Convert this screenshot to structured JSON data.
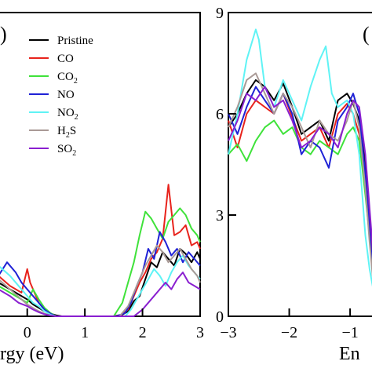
{
  "chart_data": [
    {
      "type": "line",
      "panel_label": ")",
      "xlabel": "rgy (eV)",
      "ylabel": "",
      "xlim": [
        -0.5,
        3
      ],
      "ylim": [
        0,
        9
      ],
      "x_ticks": [
        0,
        1,
        2,
        3
      ],
      "x_tick_labels": [
        "0",
        "1",
        "2",
        "3"
      ],
      "legend": {
        "position": "top-left"
      },
      "series": [
        {
          "name": "Pristine",
          "label_main": "Pristine",
          "label_sub": "",
          "color": "#000000",
          "x": [
            -0.5,
            -0.3,
            -0.1,
            0,
            0.1,
            0.2,
            0.3,
            0.4,
            0.5,
            0.6,
            1.5,
            1.65,
            1.75,
            1.85,
            1.95,
            2.05,
            2.15,
            2.25,
            2.35,
            2.45,
            2.55,
            2.65,
            2.75,
            2.85,
            2.95,
            3.0
          ],
          "y": [
            1.0,
            0.8,
            0.6,
            0.5,
            0.35,
            0.25,
            0.15,
            0.08,
            0.03,
            0,
            0,
            0.05,
            0.15,
            0.45,
            0.6,
            1.1,
            1.6,
            1.45,
            1.9,
            1.7,
            1.5,
            2.0,
            1.85,
            1.6,
            1.9,
            1.7
          ]
        },
        {
          "name": "CO",
          "label_main": "CO",
          "label_sub": "",
          "color": "#e8231c",
          "x": [
            -0.5,
            -0.3,
            -0.1,
            0,
            0.05,
            0.1,
            0.2,
            0.3,
            0.4,
            0.5,
            1.6,
            1.75,
            1.85,
            1.95,
            2.05,
            2.15,
            2.25,
            2.35,
            2.45,
            2.55,
            2.65,
            2.75,
            2.85,
            2.95,
            3.0
          ],
          "y": [
            1.2,
            0.9,
            0.7,
            1.4,
            1.0,
            0.8,
            0.4,
            0.2,
            0.08,
            0,
            0,
            0.2,
            0.6,
            1.0,
            1.3,
            1.7,
            1.9,
            2.3,
            3.9,
            2.4,
            2.5,
            2.7,
            2.1,
            2.2,
            2.0
          ]
        },
        {
          "name": "CO2",
          "label_main": "CO",
          "label_sub": "2",
          "color": "#3fe23a",
          "x": [
            -0.5,
            -0.3,
            -0.1,
            0,
            0.1,
            0.2,
            0.3,
            0.4,
            0.5,
            1.5,
            1.65,
            1.75,
            1.85,
            1.95,
            2.05,
            2.15,
            2.25,
            2.35,
            2.45,
            2.55,
            2.65,
            2.75,
            2.85,
            2.95,
            3.0
          ],
          "y": [
            0.9,
            0.7,
            0.5,
            0.4,
            0.8,
            0.5,
            0.25,
            0.1,
            0,
            0,
            0.4,
            1.0,
            1.6,
            2.4,
            3.1,
            2.9,
            2.6,
            2.3,
            2.8,
            3.0,
            3.2,
            3.0,
            2.6,
            2.4,
            2.2
          ]
        },
        {
          "name": "NO",
          "label_main": "NO",
          "label_sub": "",
          "color": "#1f22d6",
          "x": [
            -0.5,
            -0.35,
            -0.2,
            -0.1,
            0,
            0.1,
            0.2,
            0.3,
            0.4,
            0.5,
            1.55,
            1.7,
            1.8,
            1.9,
            2.0,
            2.1,
            2.2,
            2.3,
            2.4,
            2.5,
            2.6,
            2.7,
            2.8,
            2.9,
            3.0
          ],
          "y": [
            1.2,
            1.6,
            1.3,
            1.0,
            0.8,
            0.6,
            0.4,
            0.2,
            0.08,
            0,
            0,
            0.1,
            0.4,
            0.9,
            1.3,
            2.0,
            1.7,
            2.5,
            2.2,
            1.8,
            2.0,
            1.6,
            1.9,
            1.7,
            1.5
          ]
        },
        {
          "name": "NO2",
          "label_main": "NO",
          "label_sub": "2",
          "color": "#5ff3f5",
          "x": [
            -0.5,
            -0.3,
            -0.15,
            0,
            0.1,
            0.2,
            0.3,
            0.4,
            0.5,
            1.7,
            1.8,
            1.9,
            2.0,
            2.1,
            2.2,
            2.3,
            2.4,
            2.5,
            2.6,
            2.7,
            2.8,
            2.9,
            3.0
          ],
          "y": [
            1.5,
            1.2,
            0.9,
            0.6,
            0.4,
            0.3,
            0.15,
            0.05,
            0,
            0,
            0.2,
            0.5,
            0.8,
            1.1,
            1.4,
            1.2,
            0.9,
            1.3,
            1.6,
            1.8,
            1.5,
            1.3,
            1.1
          ]
        },
        {
          "name": "H2S",
          "label_main": "H",
          "label_sub": "2",
          "label_tail": "S",
          "color": "#a99a96",
          "x": [
            -0.5,
            -0.3,
            -0.1,
            0,
            0.1,
            0.2,
            0.3,
            0.4,
            0.5,
            1.6,
            1.75,
            1.85,
            1.95,
            2.05,
            2.15,
            2.25,
            2.35,
            2.45,
            2.55,
            2.65,
            2.75,
            2.85,
            2.95,
            3.0
          ],
          "y": [
            1.1,
            0.8,
            0.5,
            0.35,
            0.25,
            0.15,
            0.08,
            0.03,
            0,
            0,
            0.3,
            0.7,
            1.1,
            1.5,
            1.8,
            2.1,
            1.9,
            1.6,
            1.8,
            2.0,
            1.7,
            1.4,
            1.2,
            1.0
          ]
        },
        {
          "name": "SO2",
          "label_main": "SO",
          "label_sub": "2",
          "color": "#8a1fd0",
          "x": [
            -0.5,
            -0.3,
            -0.15,
            0,
            0.1,
            0.2,
            0.3,
            0.4,
            0.5,
            1.85,
            2.0,
            2.1,
            2.2,
            2.3,
            2.4,
            2.5,
            2.6,
            2.7,
            2.8,
            2.9,
            3.0
          ],
          "y": [
            0.8,
            0.6,
            0.4,
            0.3,
            0.2,
            0.12,
            0.06,
            0.02,
            0,
            0,
            0.2,
            0.4,
            0.6,
            0.8,
            1.0,
            0.8,
            1.1,
            1.3,
            1.0,
            0.9,
            0.8
          ]
        }
      ]
    },
    {
      "type": "line",
      "panel_label": "(",
      "xlabel": "En",
      "ylabel": "",
      "xlim": [
        -3,
        -0.55
      ],
      "ylim": [
        0,
        9
      ],
      "x_ticks": [
        -3,
        -2,
        -1
      ],
      "x_tick_labels": [
        "−3",
        "−2",
        "−1"
      ],
      "y_ticks": [
        0,
        3,
        6,
        9
      ],
      "y_tick_labels": [
        "0",
        "3",
        "6",
        "9"
      ],
      "series": [
        {
          "name": "Pristine",
          "color": "#000000",
          "x": [
            -3,
            -2.85,
            -2.7,
            -2.55,
            -2.4,
            -2.25,
            -2.1,
            -1.95,
            -1.8,
            -1.65,
            -1.5,
            -1.35,
            -1.2,
            -1.05,
            -0.95,
            -0.85,
            -0.75,
            -0.68,
            -0.62,
            -0.55
          ],
          "y": [
            5.6,
            6.0,
            6.6,
            7.0,
            6.8,
            6.4,
            6.9,
            6.2,
            5.4,
            5.6,
            5.8,
            5.2,
            6.4,
            6.6,
            6.3,
            5.8,
            4.6,
            3.0,
            1.6,
            0.8
          ]
        },
        {
          "name": "CO",
          "color": "#e8231c",
          "x": [
            -3,
            -2.85,
            -2.7,
            -2.55,
            -2.4,
            -2.25,
            -2.1,
            -1.95,
            -1.8,
            -1.65,
            -1.5,
            -1.35,
            -1.2,
            -1.05,
            -0.95,
            -0.85,
            -0.75,
            -0.68,
            -0.62,
            -0.55
          ],
          "y": [
            5.8,
            5.0,
            6.0,
            6.4,
            6.2,
            6.0,
            6.6,
            5.9,
            5.2,
            5.4,
            5.6,
            5.0,
            6.0,
            6.3,
            6.0,
            5.4,
            4.0,
            2.8,
            1.3,
            0.6
          ]
        },
        {
          "name": "CO2",
          "color": "#3fe23a",
          "x": [
            -3,
            -2.85,
            -2.7,
            -2.55,
            -2.4,
            -2.25,
            -2.1,
            -1.95,
            -1.8,
            -1.65,
            -1.5,
            -1.35,
            -1.2,
            -1.05,
            -0.95,
            -0.85,
            -0.75,
            -0.68,
            -0.62,
            -0.55
          ],
          "y": [
            4.8,
            5.1,
            4.6,
            5.2,
            5.6,
            5.8,
            5.4,
            5.6,
            5.0,
            4.8,
            5.2,
            5.0,
            4.8,
            5.4,
            5.6,
            5.2,
            3.6,
            2.4,
            1.2,
            0.5
          ]
        },
        {
          "name": "NO",
          "color": "#1f22d6",
          "x": [
            -3,
            -2.85,
            -2.7,
            -2.55,
            -2.4,
            -2.25,
            -2.1,
            -1.95,
            -1.8,
            -1.65,
            -1.5,
            -1.35,
            -1.2,
            -1.05,
            -0.95,
            -0.85,
            -0.75,
            -0.68,
            -0.62,
            -0.55
          ],
          "y": [
            6.0,
            5.4,
            6.2,
            6.8,
            6.4,
            6.0,
            6.6,
            6.0,
            4.8,
            5.2,
            5.0,
            4.4,
            5.8,
            6.2,
            6.6,
            6.0,
            4.2,
            2.6,
            1.1,
            0.4
          ]
        },
        {
          "name": "NO2",
          "color": "#5ff3f5",
          "x": [
            -3,
            -2.85,
            -2.7,
            -2.55,
            -2.5,
            -2.4,
            -2.25,
            -2.1,
            -1.95,
            -1.8,
            -1.65,
            -1.5,
            -1.4,
            -1.3,
            -1.2,
            -1.05,
            -0.95,
            -0.85,
            -0.75,
            -0.68,
            -0.62,
            -0.55
          ],
          "y": [
            4.8,
            6.0,
            7.6,
            8.5,
            8.2,
            6.8,
            6.2,
            7.0,
            6.4,
            5.8,
            6.8,
            7.6,
            8.0,
            6.6,
            6.2,
            6.4,
            6.0,
            4.8,
            2.4,
            1.4,
            0.8,
            0.5
          ]
        },
        {
          "name": "H2S",
          "color": "#a99a96",
          "x": [
            -3,
            -2.85,
            -2.7,
            -2.55,
            -2.4,
            -2.25,
            -2.1,
            -1.95,
            -1.8,
            -1.65,
            -1.5,
            -1.35,
            -1.2,
            -1.05,
            -0.95,
            -0.85,
            -0.75,
            -0.68,
            -0.62,
            -0.55
          ],
          "y": [
            5.6,
            6.2,
            7.0,
            7.2,
            6.6,
            6.0,
            6.6,
            6.2,
            5.6,
            5.0,
            5.8,
            5.4,
            5.2,
            5.8,
            6.4,
            5.6,
            3.8,
            2.2,
            1.0,
            0.4
          ]
        },
        {
          "name": "SO2",
          "color": "#8a1fd0",
          "x": [
            -3,
            -2.85,
            -2.7,
            -2.55,
            -2.4,
            -2.25,
            -2.1,
            -1.95,
            -1.8,
            -1.65,
            -1.5,
            -1.35,
            -1.2,
            -1.05,
            -0.95,
            -0.85,
            -0.75,
            -0.68,
            -0.62,
            -0.55
          ],
          "y": [
            5.2,
            5.8,
            6.6,
            6.4,
            6.8,
            6.2,
            6.4,
            5.8,
            5.0,
            5.2,
            5.6,
            5.4,
            5.0,
            6.0,
            6.4,
            6.2,
            4.8,
            3.2,
            1.8,
            0.9
          ]
        }
      ]
    }
  ]
}
